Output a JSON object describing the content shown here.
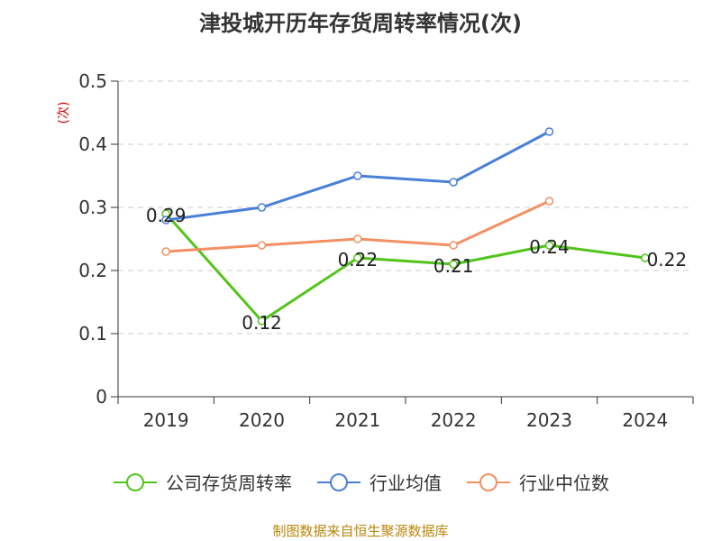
{
  "title": "津投城开历年存货周转率情况(次)",
  "source": "制图数据来自恒生聚源数据库",
  "chart_data": {
    "type": "line",
    "categories": [
      "2019",
      "2020",
      "2021",
      "2022",
      "2023",
      "2024"
    ],
    "ylabel": "(次)",
    "ylim": [
      0,
      0.5
    ],
    "yticks": [
      0,
      0.1,
      0.2,
      0.3,
      0.4,
      0.5
    ],
    "ytick_labels": [
      "0",
      "0.1",
      "0.2",
      "0.3",
      "0.4",
      "0.5"
    ],
    "grid": true,
    "legend_position": "bottom",
    "series": [
      {
        "name": "公司存货周转率",
        "color": "#52c41a",
        "values": [
          0.29,
          0.12,
          0.22,
          0.21,
          0.24,
          0.22
        ],
        "labels": [
          "0.29",
          "0.12",
          "0.22",
          "0.21",
          "0.24",
          "0.22"
        ]
      },
      {
        "name": "行业均值",
        "color": "#4a7fd8",
        "values": [
          0.28,
          0.3,
          0.35,
          0.34,
          0.42,
          null
        ]
      },
      {
        "name": "行业中位数",
        "color": "#f39063",
        "values": [
          0.23,
          0.24,
          0.25,
          0.24,
          0.31,
          null
        ]
      }
    ]
  }
}
